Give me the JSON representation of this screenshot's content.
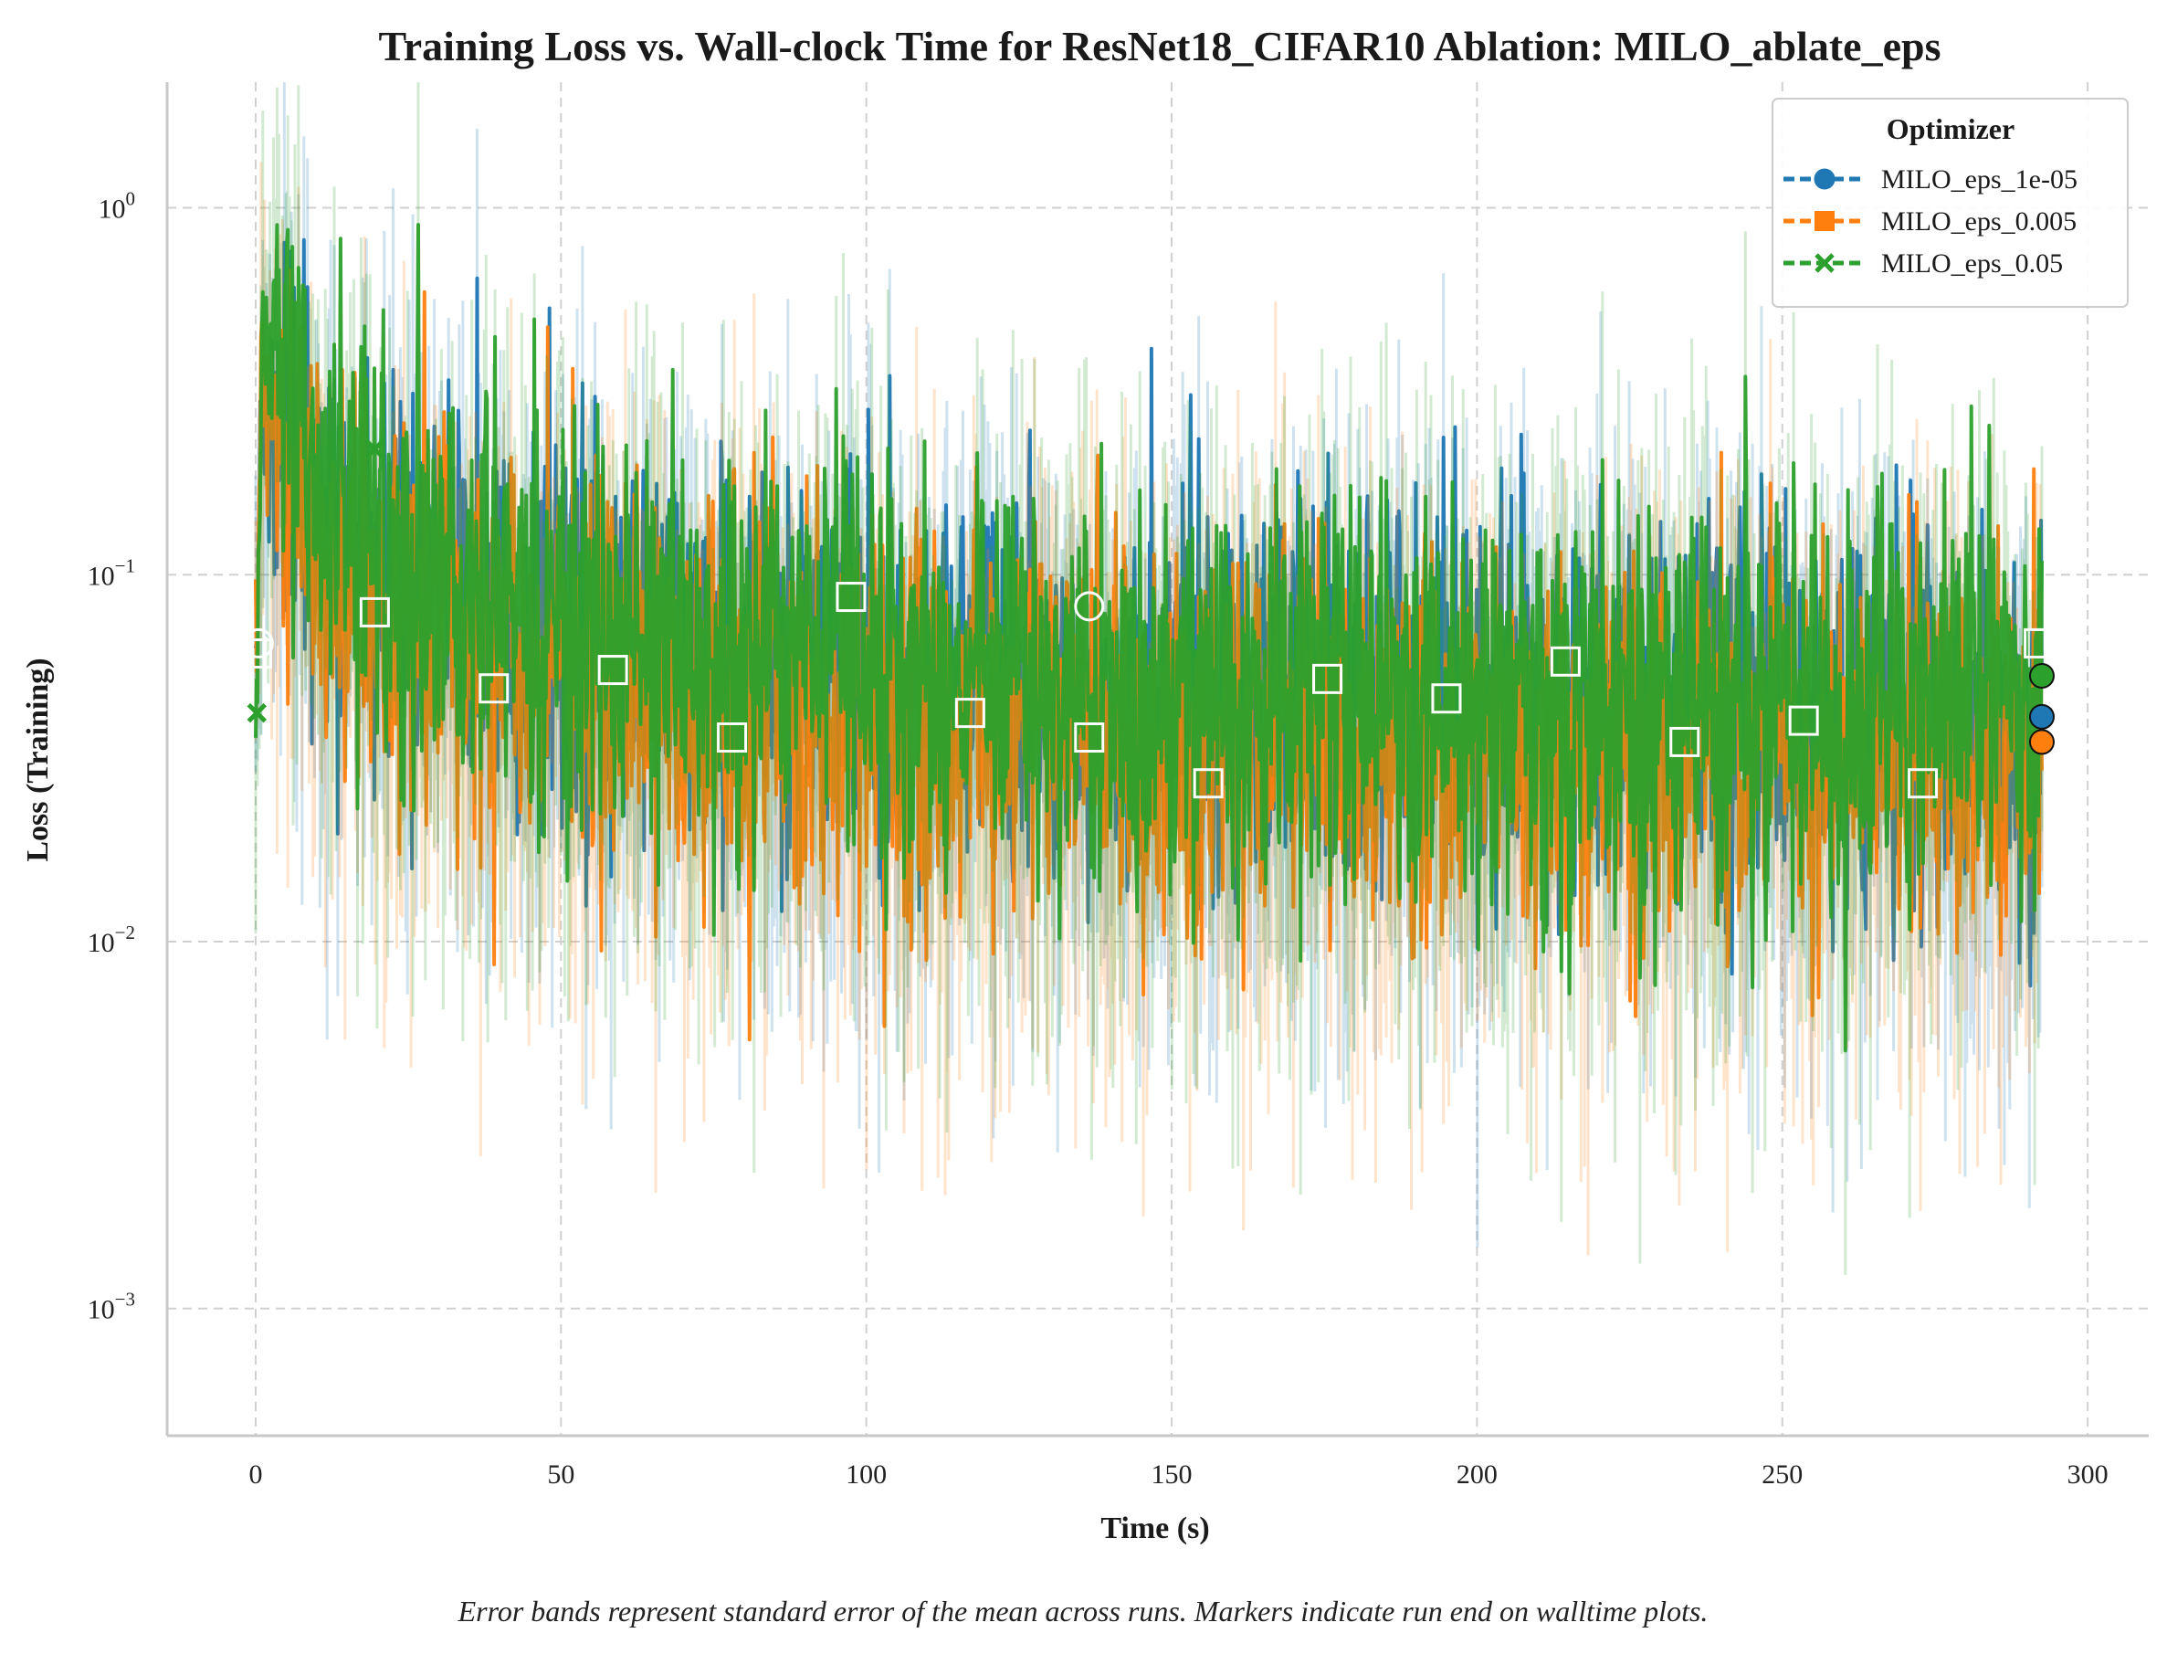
{
  "chart_data": {
    "type": "line",
    "title": "Training Loss vs. Wall-clock Time for ResNet18_CIFAR10 Ablation: MILO_ablate_eps",
    "xlabel": "Time (s)",
    "ylabel": "Loss (Training)",
    "caption": "Error bands represent standard error of the mean across runs. Markers indicate run end on walltime plots.",
    "xlim": [
      -14.5,
      310
    ],
    "ylim": [
      0.00045,
      2.2
    ],
    "yscale": "log",
    "grid": true,
    "legend_title": "Optimizer",
    "legend_position": "top-right",
    "xticks": [
      {
        "value": 0,
        "label": "0"
      },
      {
        "value": 50,
        "label": "50"
      },
      {
        "value": 100,
        "label": "100"
      },
      {
        "value": 150,
        "label": "150"
      },
      {
        "value": 200,
        "label": "200"
      },
      {
        "value": 250,
        "label": "250"
      },
      {
        "value": 300,
        "label": "300"
      }
    ],
    "yticks": [
      {
        "value": 1,
        "base": "10",
        "exp": "0"
      },
      {
        "value": 0.1,
        "base": "10",
        "exp": "−1"
      },
      {
        "value": 0.01,
        "base": "10",
        "exp": "−2"
      },
      {
        "value": 0.001,
        "base": "10",
        "exp": "−3"
      }
    ],
    "series": [
      {
        "name": "MILO_eps_1e-05",
        "color": "#1f77b4",
        "marker": "circle",
        "end_time": 292.5,
        "end_value": 0.041,
        "trend_x": [
          0,
          1,
          3,
          6,
          10,
          15,
          20,
          30,
          45,
          60,
          80,
          100,
          130,
          160,
          200,
          240,
          270,
          292
        ],
        "trend_y": [
          0.065,
          0.35,
          0.3,
          0.2,
          0.15,
          0.12,
          0.11,
          0.09,
          0.075,
          0.066,
          0.06,
          0.056,
          0.052,
          0.049,
          0.046,
          0.043,
          0.042,
          0.041
        ],
        "marker_points": [
          {
            "x": 0.5,
            "y": 0.065
          },
          {
            "x": 136.5,
            "y": 0.082
          },
          {
            "x": 292.5,
            "y": 0.041
          }
        ]
      },
      {
        "name": "MILO_eps_0.005",
        "color": "#ff7f0e",
        "marker": "square",
        "end_time": 292.5,
        "end_value": 0.035,
        "trend_x": [
          0,
          1,
          3,
          6,
          10,
          15,
          20,
          30,
          45,
          60,
          80,
          100,
          130,
          160,
          200,
          240,
          270,
          292
        ],
        "trend_y": [
          0.06,
          0.3,
          0.25,
          0.17,
          0.12,
          0.095,
          0.085,
          0.07,
          0.058,
          0.052,
          0.047,
          0.043,
          0.04,
          0.037,
          0.035,
          0.034,
          0.034,
          0.035
        ],
        "marker_points": [
          {
            "x": 0.2,
            "y": 0.061
          },
          {
            "x": 19.5,
            "y": 0.079
          },
          {
            "x": 39.0,
            "y": 0.049
          },
          {
            "x": 58.5,
            "y": 0.055
          },
          {
            "x": 78.0,
            "y": 0.036
          },
          {
            "x": 97.5,
            "y": 0.087
          },
          {
            "x": 117.0,
            "y": 0.042
          },
          {
            "x": 136.5,
            "y": 0.036
          },
          {
            "x": 156.0,
            "y": 0.027
          },
          {
            "x": 175.5,
            "y": 0.052
          },
          {
            "x": 195.0,
            "y": 0.046
          },
          {
            "x": 214.5,
            "y": 0.058
          },
          {
            "x": 234.0,
            "y": 0.035
          },
          {
            "x": 253.5,
            "y": 0.04
          },
          {
            "x": 273.0,
            "y": 0.027
          },
          {
            "x": 292.0,
            "y": 0.065
          },
          {
            "x": 292.5,
            "y": 0.035
          }
        ]
      },
      {
        "name": "MILO_eps_0.05",
        "color": "#2ca02c",
        "marker": "x",
        "end_time": 292.5,
        "end_value": 0.053,
        "trend_x": [
          0,
          1,
          3,
          6,
          10,
          15,
          20,
          30,
          45,
          60,
          80,
          100,
          130,
          160,
          200,
          240,
          270,
          292
        ],
        "trend_y": [
          0.042,
          0.45,
          0.38,
          0.24,
          0.17,
          0.13,
          0.115,
          0.095,
          0.078,
          0.068,
          0.06,
          0.055,
          0.051,
          0.048,
          0.046,
          0.045,
          0.047,
          0.053
        ],
        "marker_points": [
          {
            "x": 0.2,
            "y": 0.042
          },
          {
            "x": 19.5,
            "y": 0.22
          },
          {
            "x": 292.5,
            "y": 0.053
          }
        ]
      }
    ]
  }
}
